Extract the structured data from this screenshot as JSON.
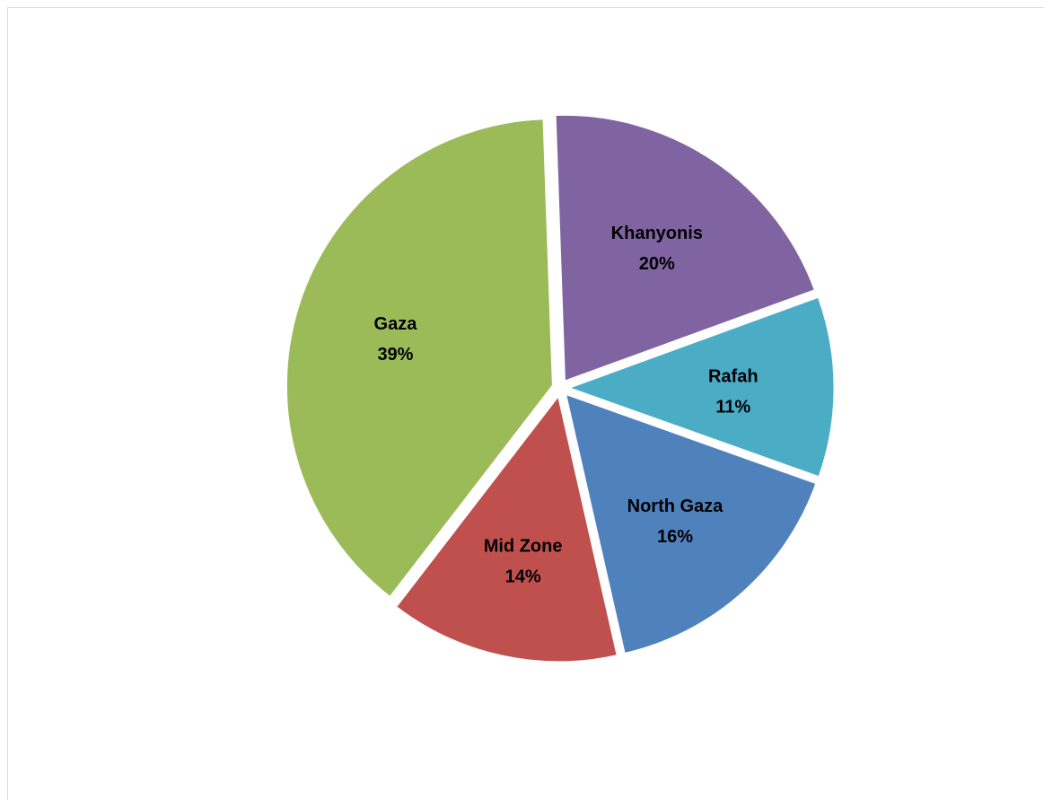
{
  "chart_data": {
    "type": "pie",
    "categories": [
      "Khanyonis",
      "Rafah",
      "North Gaza",
      "Mid Zone",
      "Gaza"
    ],
    "values": [
      20,
      11,
      16,
      14,
      39
    ],
    "data_labels": [
      "20%",
      "11%",
      "16%",
      "14%",
      "39%"
    ],
    "colors": [
      "#8064a2",
      "#4bacc6",
      "#4f81bd",
      "#c0504d",
      "#9bbb59"
    ],
    "exploded": true,
    "legend": "none",
    "title": ""
  }
}
